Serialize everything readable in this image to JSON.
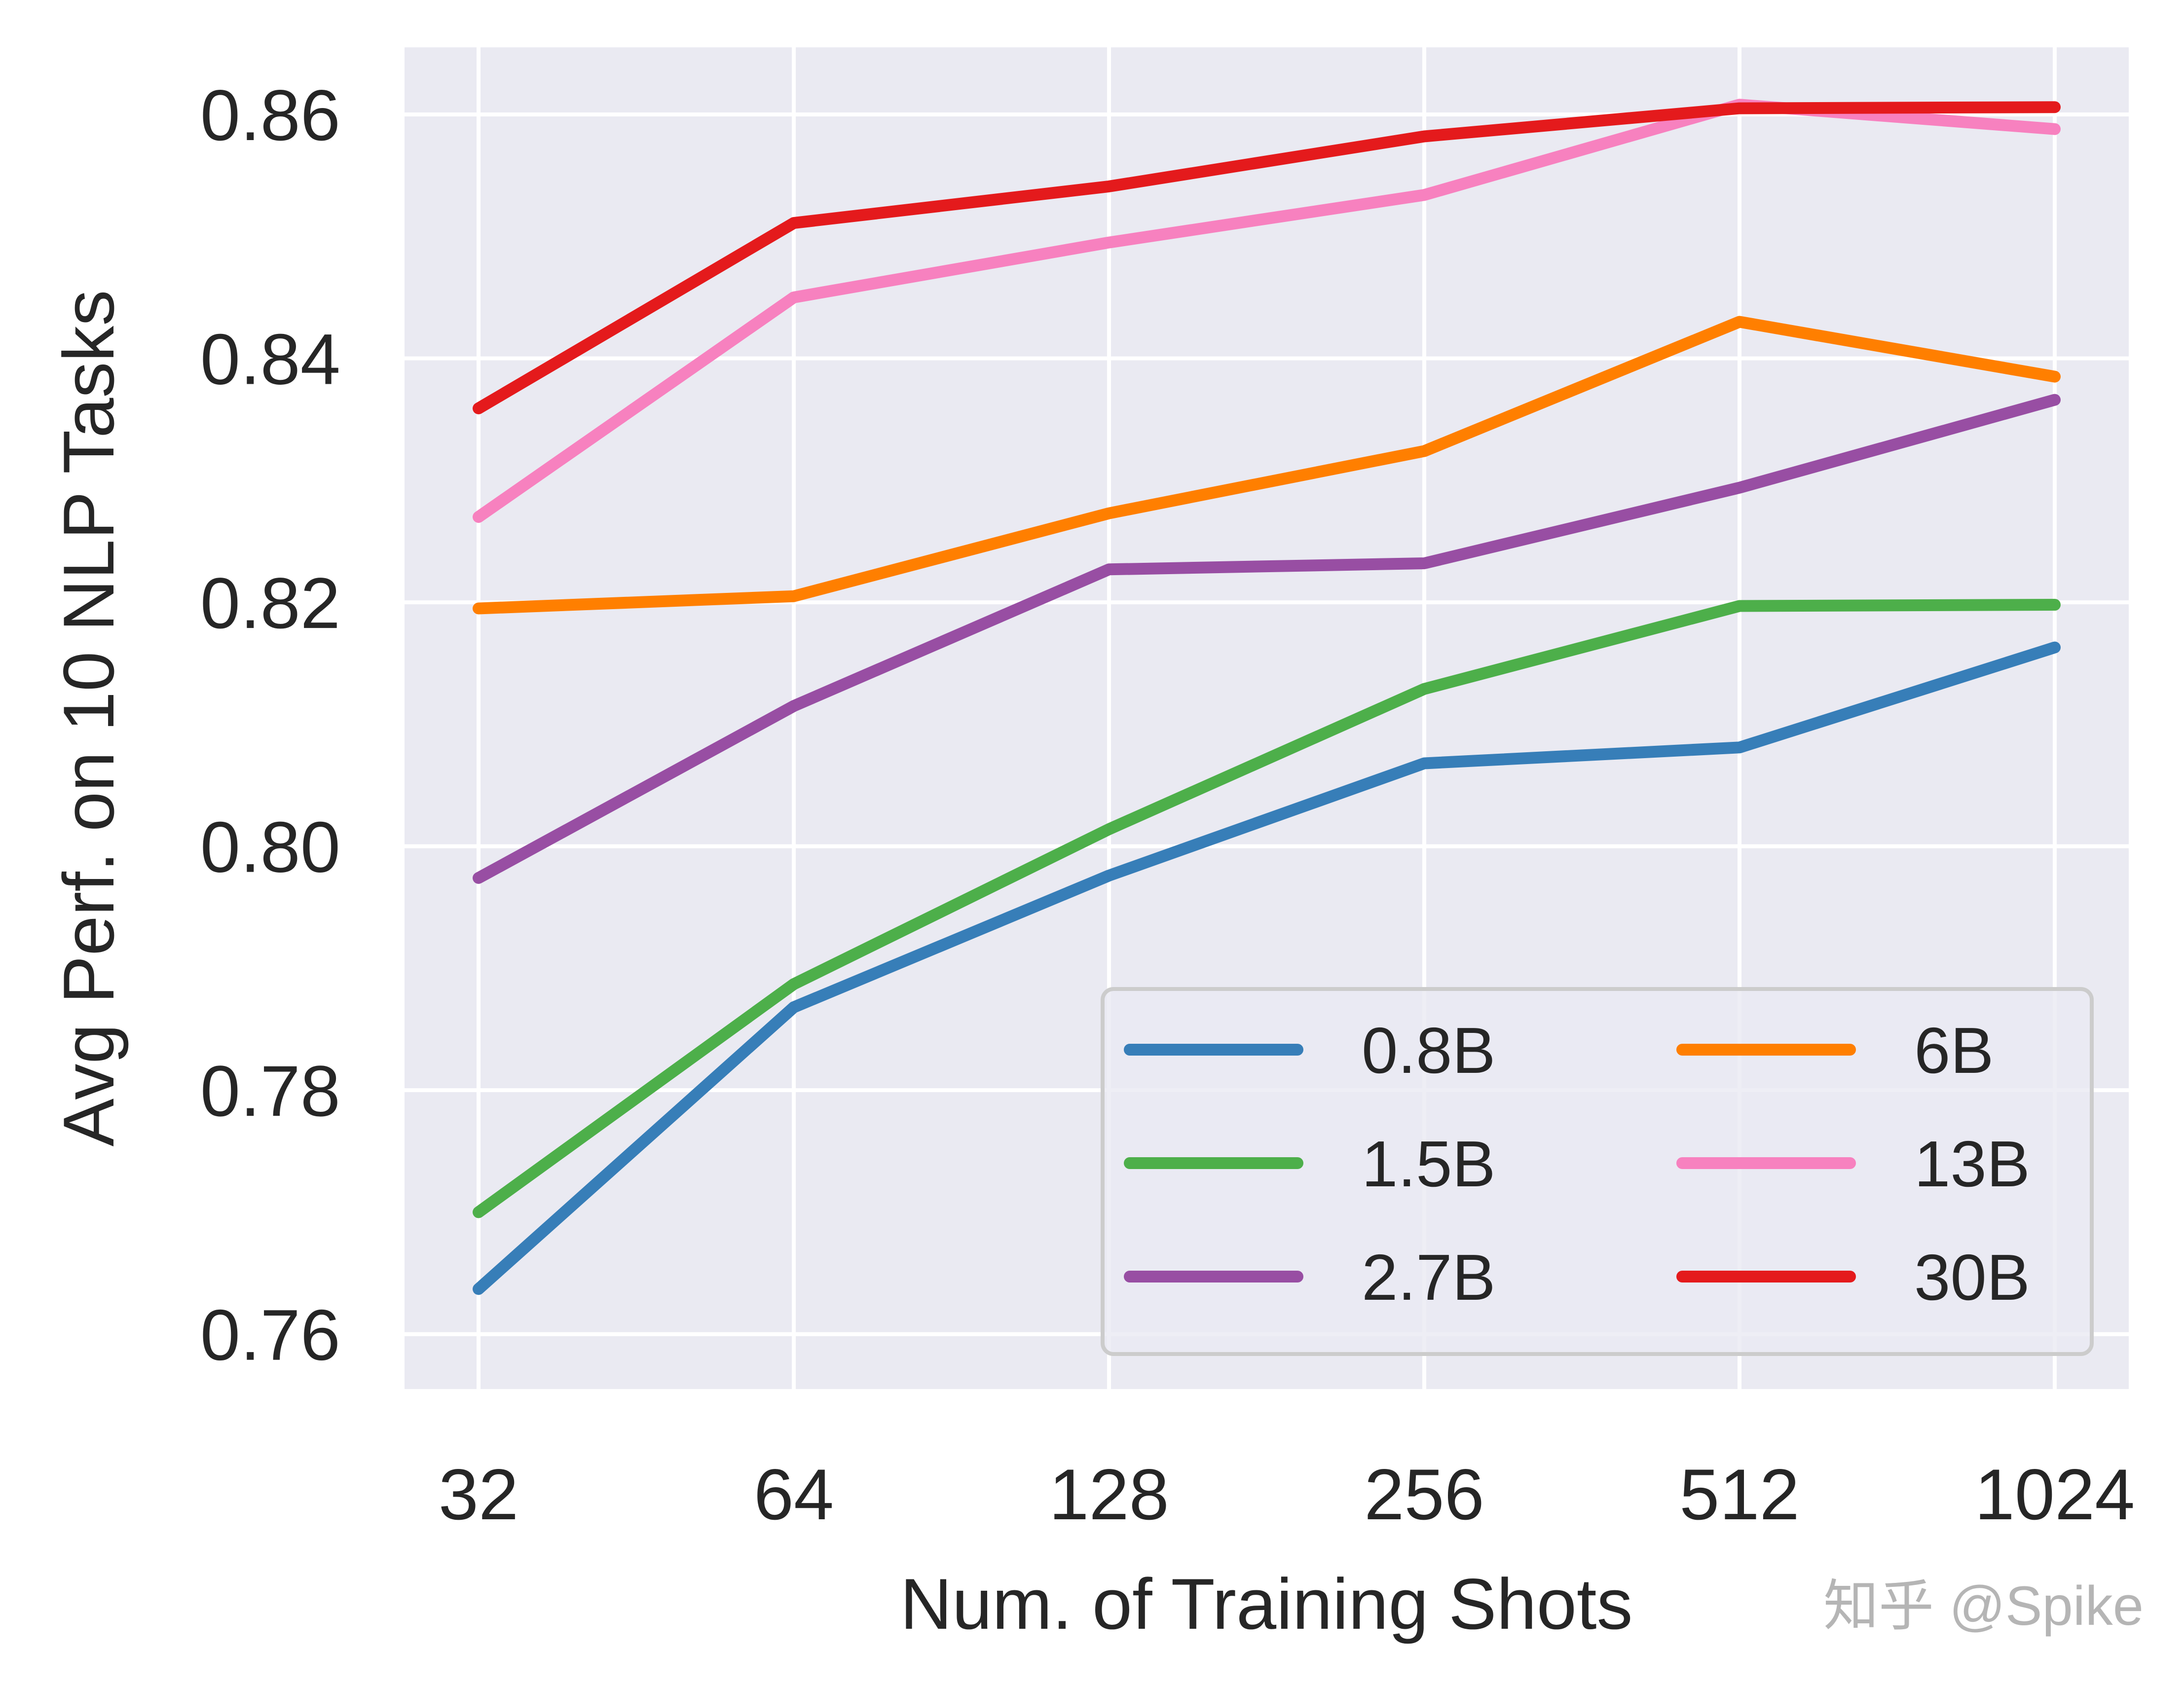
{
  "chart_data": {
    "type": "line",
    "title": "",
    "xlabel": "Num. of Training Shots",
    "ylabel": "Avg Perf. on 10 NLP Tasks",
    "x": [
      "32",
      "64",
      "128",
      "256",
      "512",
      "1024"
    ],
    "x_scale": "log2",
    "ylim": [
      0.7555,
      0.8655
    ],
    "yticks": [
      "0.76",
      "0.78",
      "0.80",
      "0.82",
      "0.84",
      "0.86"
    ],
    "grid": true,
    "legend_position": "lower-right",
    "legend_columns": 2,
    "series": [
      {
        "name": "0.8B",
        "color": "#377eb8",
        "values": [
          0.7637,
          0.7868,
          0.7976,
          0.8068,
          0.8081,
          0.8163
        ]
      },
      {
        "name": "1.5B",
        "color": "#4daf4a",
        "values": [
          0.77,
          0.7887,
          0.8014,
          0.8129,
          0.8197,
          0.8198
        ]
      },
      {
        "name": "2.7B",
        "color": "#984ea3",
        "values": [
          0.7974,
          0.8115,
          0.8227,
          0.8232,
          0.8294,
          0.8366
        ]
      },
      {
        "name": "6B",
        "color": "#ff7f00",
        "values": [
          0.8195,
          0.8205,
          0.8273,
          0.8324,
          0.843,
          0.8385
        ]
      },
      {
        "name": "13B",
        "color": "#f781bf",
        "values": [
          0.827,
          0.845,
          0.8495,
          0.8534,
          0.8608,
          0.8588
        ]
      },
      {
        "name": "30B",
        "color": "#e41a1c",
        "values": [
          0.8359,
          0.8511,
          0.8541,
          0.8582,
          0.8605,
          0.8606
        ]
      }
    ]
  },
  "watermark": "知乎 @Spike"
}
